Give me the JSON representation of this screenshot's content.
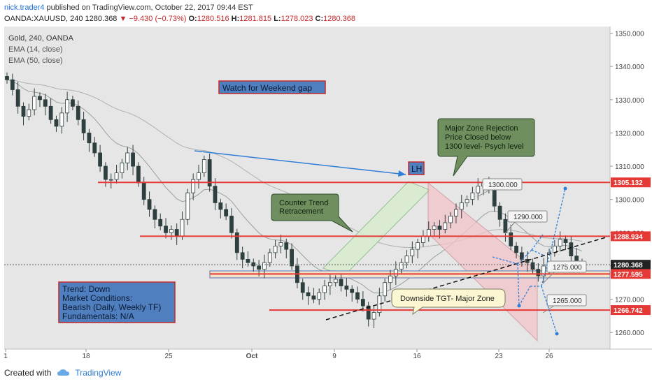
{
  "header": {
    "author": "nick.trader4",
    "published_text": "published on TradingView.com, October 22, 2017 09:44 EST",
    "symbol": "OANDA:XAUUSD, 240",
    "last": "1280.368",
    "change": "▼ −9.430 (−0.73%)",
    "o_label": "O:",
    "o_val": "1280.516",
    "h_label": "H:",
    "h_val": "1281.815",
    "l_label": "L:",
    "l_val": "1278.023",
    "c_label": "C:",
    "c_val": "1280.368"
  },
  "legend": {
    "line1": "Gold, 240, OANDA",
    "line2": "EMA (14, close)",
    "line3": "EMA (50, close)"
  },
  "footer": {
    "created_with": "Created with",
    "brand": "TradingView"
  },
  "colors": {
    "up": "#2e3f3f",
    "down": "#2e3f3f",
    "resistance": "#e53935",
    "trend_arrow": "#2f7ed8",
    "channel_fill": "#d9ecd0",
    "down_channel_fill": "#f2c4c8",
    "note_fill": "#6f8f5f",
    "info_fill": "#4f7fbf"
  },
  "chart_data": {
    "type": "candlestick",
    "title": "Gold, 240, OANDA",
    "x_tick_labels": [
      "1",
      "18",
      "25",
      "Oct",
      "9",
      "16",
      "23",
      "26"
    ],
    "y_tick_labels": [
      "1350.000",
      "1340.000",
      "1330.000",
      "1320.000",
      "1310.000",
      "1300.000",
      "1290.000",
      "1280.000",
      "1270.000",
      "1260.000"
    ],
    "ylim": [
      1255,
      1352
    ],
    "price_labels": {
      "p1": "1305.132",
      "p2": "1288.934",
      "p3": "1280.368",
      "p4": "1277.595",
      "p5": "1266.742"
    },
    "horizontal_levels": [
      1305.132,
      1288.934,
      1277.595,
      1266.742
    ],
    "indicators": [
      "EMA (14, close)",
      "EMA (50, close)"
    ],
    "close_series": [
      1336,
      1333,
      1328,
      1325,
      1327,
      1331,
      1330,
      1328,
      1324,
      1322,
      1326,
      1330,
      1328,
      1324,
      1320,
      1317,
      1314,
      1310,
      1306,
      1306,
      1308,
      1311,
      1314,
      1310,
      1305,
      1300,
      1297,
      1294,
      1292,
      1290,
      1291,
      1289,
      1294,
      1302,
      1306,
      1308,
      1312,
      1304,
      1299,
      1297,
      1295,
      1290,
      1284,
      1282,
      1281,
      1280,
      1279,
      1281,
      1284,
      1286,
      1287,
      1285,
      1280,
      1275,
      1272,
      1271,
      1270,
      1272,
      1274,
      1275,
      1276,
      1274,
      1273,
      1272,
      1270,
      1268,
      1264,
      1266,
      1271,
      1275,
      1277,
      1279,
      1281,
      1283,
      1285,
      1287,
      1289,
      1291,
      1292,
      1291,
      1293,
      1295,
      1297,
      1299,
      1300,
      1302,
      1304,
      1305,
      1303,
      1298,
      1294,
      1290,
      1286,
      1284,
      1282,
      1281,
      1279,
      1277,
      1280,
      1284,
      1286,
      1288,
      1287,
      1283,
      1281,
      1280
    ],
    "annotations": {
      "weekend_gap": "Watch for Weekend gap",
      "lh": "LH",
      "major_zone": [
        "Major Zone Rejection",
        "Price Closed below",
        "1300 level- Psych level"
      ],
      "counter_trend": [
        "Counter Trend",
        "Retracement"
      ],
      "downside": "Downside TGT- Major Zone",
      "info": [
        "Trend: Down",
        "Market Conditions:",
        "Bearish (Daily, Weekly TF)",
        "Fundamentals: N/A"
      ],
      "tag_1300": "1300.000",
      "tag_1290": "1290.000",
      "tag_1275": "1275.000",
      "tag_1265": "1265.000"
    }
  }
}
